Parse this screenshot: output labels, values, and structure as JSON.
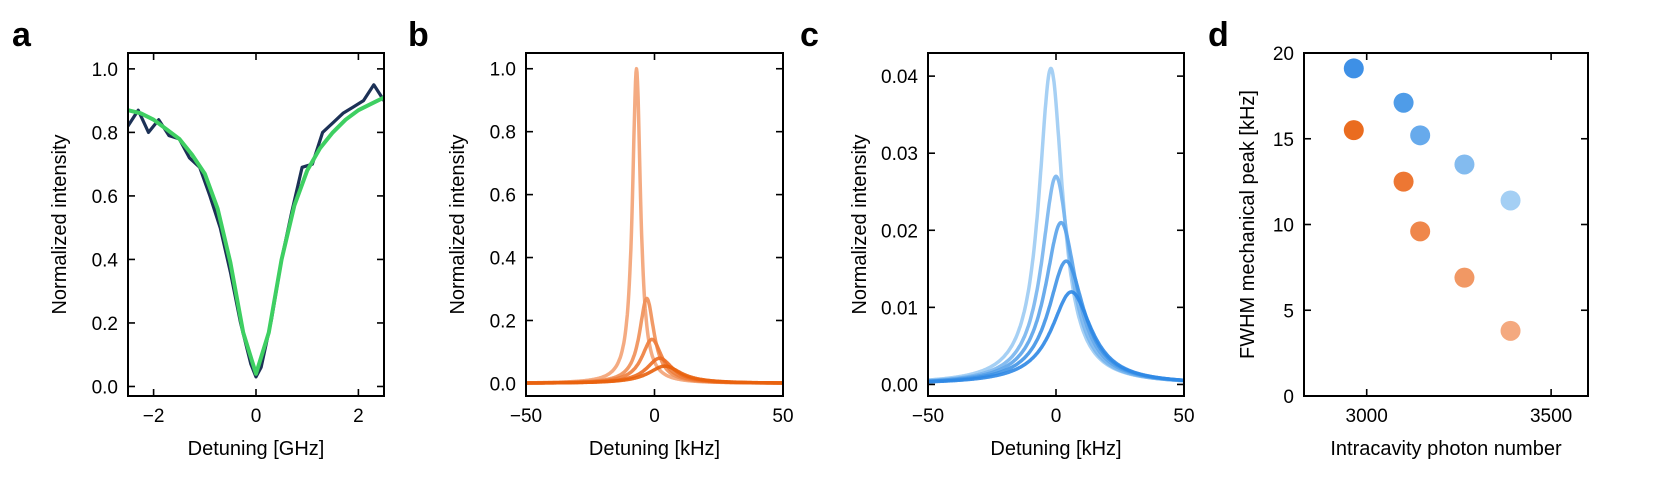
{
  "chart_data": [
    {
      "panel": "a",
      "type": "line",
      "xlabel": "Detuning [GHz]",
      "ylabel": "Normalized intensity",
      "xlim": [
        -2.5,
        2.5
      ],
      "ylim": [
        -0.03,
        1.05
      ],
      "xticks": [
        -2,
        0,
        2
      ],
      "xtick_labels": [
        "−2",
        "0",
        "2"
      ],
      "yticks": [
        0.0,
        0.2,
        0.4,
        0.6,
        0.8,
        1.0
      ],
      "ytick_labels": [
        "0.0",
        "0.2",
        "0.4",
        "0.6",
        "0.8",
        "1.0"
      ],
      "series": [
        {
          "role": "data",
          "color": "#1c3156",
          "x": [
            -2.5,
            -2.3,
            -2.1,
            -1.9,
            -1.7,
            -1.5,
            -1.3,
            -1.1,
            -0.9,
            -0.7,
            -0.5,
            -0.3,
            -0.1,
            0.0,
            0.1,
            0.3,
            0.5,
            0.7,
            0.9,
            1.1,
            1.3,
            1.5,
            1.7,
            1.9,
            2.1,
            2.3,
            2.5
          ],
          "y": [
            0.82,
            0.87,
            0.8,
            0.84,
            0.79,
            0.78,
            0.72,
            0.69,
            0.6,
            0.5,
            0.36,
            0.2,
            0.07,
            0.03,
            0.06,
            0.21,
            0.4,
            0.55,
            0.69,
            0.7,
            0.8,
            0.83,
            0.86,
            0.88,
            0.9,
            0.95,
            0.9
          ]
        },
        {
          "role": "fit",
          "color": "#3ecf62",
          "x": [
            -2.5,
            -2.25,
            -2.0,
            -1.75,
            -1.5,
            -1.25,
            -1.0,
            -0.75,
            -0.5,
            -0.25,
            0.0,
            0.25,
            0.5,
            0.75,
            1.0,
            1.25,
            1.5,
            1.75,
            2.0,
            2.25,
            2.5
          ],
          "y": [
            0.87,
            0.86,
            0.84,
            0.81,
            0.78,
            0.73,
            0.67,
            0.56,
            0.39,
            0.17,
            0.04,
            0.17,
            0.4,
            0.57,
            0.68,
            0.75,
            0.8,
            0.84,
            0.87,
            0.89,
            0.91
          ]
        }
      ]
    },
    {
      "panel": "b",
      "type": "line",
      "xlabel": "Detuning [kHz]",
      "ylabel": "Normalized intensity",
      "xlim": [
        -50,
        50
      ],
      "ylim": [
        -0.04,
        1.05
      ],
      "xticks": [
        -50,
        0,
        50
      ],
      "xtick_labels": [
        "−50",
        "0",
        "50"
      ],
      "yticks": [
        0.0,
        0.2,
        0.4,
        0.6,
        0.8,
        1.0
      ],
      "ytick_labels": [
        "0.0",
        "0.2",
        "0.4",
        "0.6",
        "0.8",
        "1.0"
      ],
      "series": [
        {
          "center": -7,
          "amplitude": 1.0,
          "fwhm": 3.8,
          "color": "#f3a274"
        },
        {
          "center": -3,
          "amplitude": 0.27,
          "fwhm": 6.9,
          "color": "#f08f57"
        },
        {
          "center": -1,
          "amplitude": 0.14,
          "fwhm": 9.6,
          "color": "#ee7d3c"
        },
        {
          "center": 2,
          "amplitude": 0.08,
          "fwhm": 12.5,
          "color": "#ec6b22"
        },
        {
          "center": 4,
          "amplitude": 0.055,
          "fwhm": 15.5,
          "color": "#e8600c"
        }
      ]
    },
    {
      "panel": "c",
      "type": "line",
      "xlabel": "Detuning [kHz]",
      "ylabel": "Normalized intensity",
      "xlim": [
        -50,
        50
      ],
      "ylim": [
        -0.0015,
        0.043
      ],
      "xticks": [
        -50,
        0,
        50
      ],
      "xtick_labels": [
        "−50",
        "0",
        "50"
      ],
      "yticks": [
        0.0,
        0.01,
        0.02,
        0.03,
        0.04
      ],
      "ytick_labels": [
        "0.00",
        "0.01",
        "0.02",
        "0.03",
        "0.04"
      ],
      "series": [
        {
          "center": -2,
          "amplitude": 0.041,
          "fwhm": 11.4,
          "color": "#9ccbf3"
        },
        {
          "center": 0,
          "amplitude": 0.027,
          "fwhm": 13.5,
          "color": "#78b5ee"
        },
        {
          "center": 2,
          "amplitude": 0.021,
          "fwhm": 15.2,
          "color": "#5aa3ea"
        },
        {
          "center": 4,
          "amplitude": 0.016,
          "fwhm": 17.1,
          "color": "#4094e6"
        },
        {
          "center": 6,
          "amplitude": 0.012,
          "fwhm": 19.1,
          "color": "#2e87e4"
        }
      ]
    },
    {
      "panel": "d",
      "type": "scatter",
      "xlabel": "Intracavity photon number",
      "ylabel": "FWHM mechanical peak [kHz]",
      "xlim": [
        2830,
        3600
      ],
      "ylim": [
        0,
        20
      ],
      "xticks": [
        3000,
        3500
      ],
      "xtick_labels": [
        "3000",
        "3500"
      ],
      "yticks": [
        0,
        5,
        10,
        15,
        20
      ],
      "ytick_labels": [
        "0",
        "5",
        "10",
        "15",
        "20"
      ],
      "series": [
        {
          "name_hidden": "blue",
          "x": [
            2965,
            3100,
            3145,
            3265,
            3390
          ],
          "y": [
            19.1,
            17.1,
            15.2,
            13.5,
            11.4
          ],
          "colors": [
            "#2e87e4",
            "#4094e6",
            "#5aa3ea",
            "#78b5ee",
            "#9ccbf3"
          ]
        },
        {
          "name_hidden": "orange",
          "x": [
            2965,
            3100,
            3145,
            3265,
            3390
          ],
          "y": [
            15.5,
            12.5,
            9.6,
            6.9,
            3.8
          ],
          "colors": [
            "#e8600c",
            "#ec6b22",
            "#ee7d3c",
            "#f08f57",
            "#f3a274"
          ]
        }
      ]
    }
  ],
  "panels": {
    "a": {
      "letter": "a"
    },
    "b": {
      "letter": "b"
    },
    "c": {
      "letter": "c"
    },
    "d": {
      "letter": "d"
    }
  }
}
